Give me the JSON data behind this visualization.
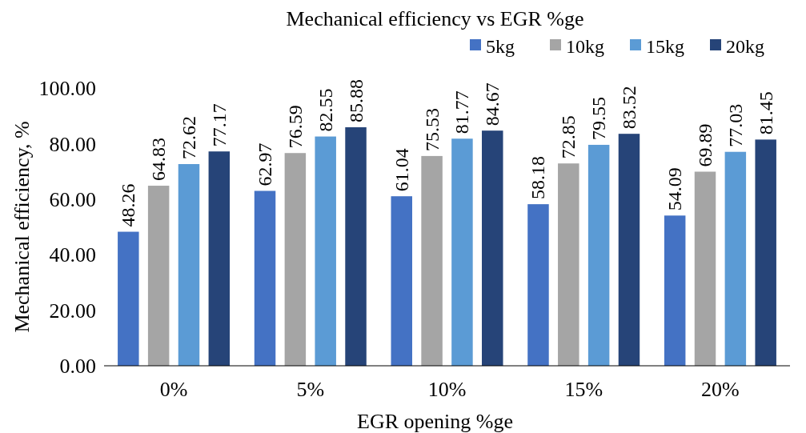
{
  "chart_data": {
    "type": "bar",
    "title": "Mechanical efficiency vs EGR %ge",
    "xlabel": "EGR opening %ge",
    "ylabel": "Mechanical efficiency, %",
    "categories": [
      "0%",
      "5%",
      "10%",
      "15%",
      "20%"
    ],
    "series": [
      {
        "name": "5kg",
        "color": "#4472c4",
        "values": [
          48.26,
          62.97,
          61.04,
          58.18,
          54.09
        ]
      },
      {
        "name": "10kg",
        "color": "#a5a5a5",
        "values": [
          64.83,
          76.59,
          75.53,
          72.85,
          69.89
        ]
      },
      {
        "name": "15kg",
        "color": "#5b9bd5",
        "values": [
          72.62,
          82.55,
          81.77,
          79.55,
          77.03
        ]
      },
      {
        "name": "20kg",
        "color": "#264478",
        "values": [
          77.17,
          85.88,
          84.67,
          83.52,
          81.45
        ]
      }
    ],
    "ylim": [
      0,
      100
    ],
    "yticks": [
      {
        "value": 0,
        "label": "0.00"
      },
      {
        "value": 20,
        "label": "20.00"
      },
      {
        "value": 40,
        "label": "40.00"
      },
      {
        "value": 60,
        "label": "60.00"
      },
      {
        "value": 80,
        "label": "80.00"
      },
      {
        "value": 100,
        "label": "100.00"
      }
    ],
    "data_labels": true,
    "legend": "top right",
    "grid": false
  }
}
